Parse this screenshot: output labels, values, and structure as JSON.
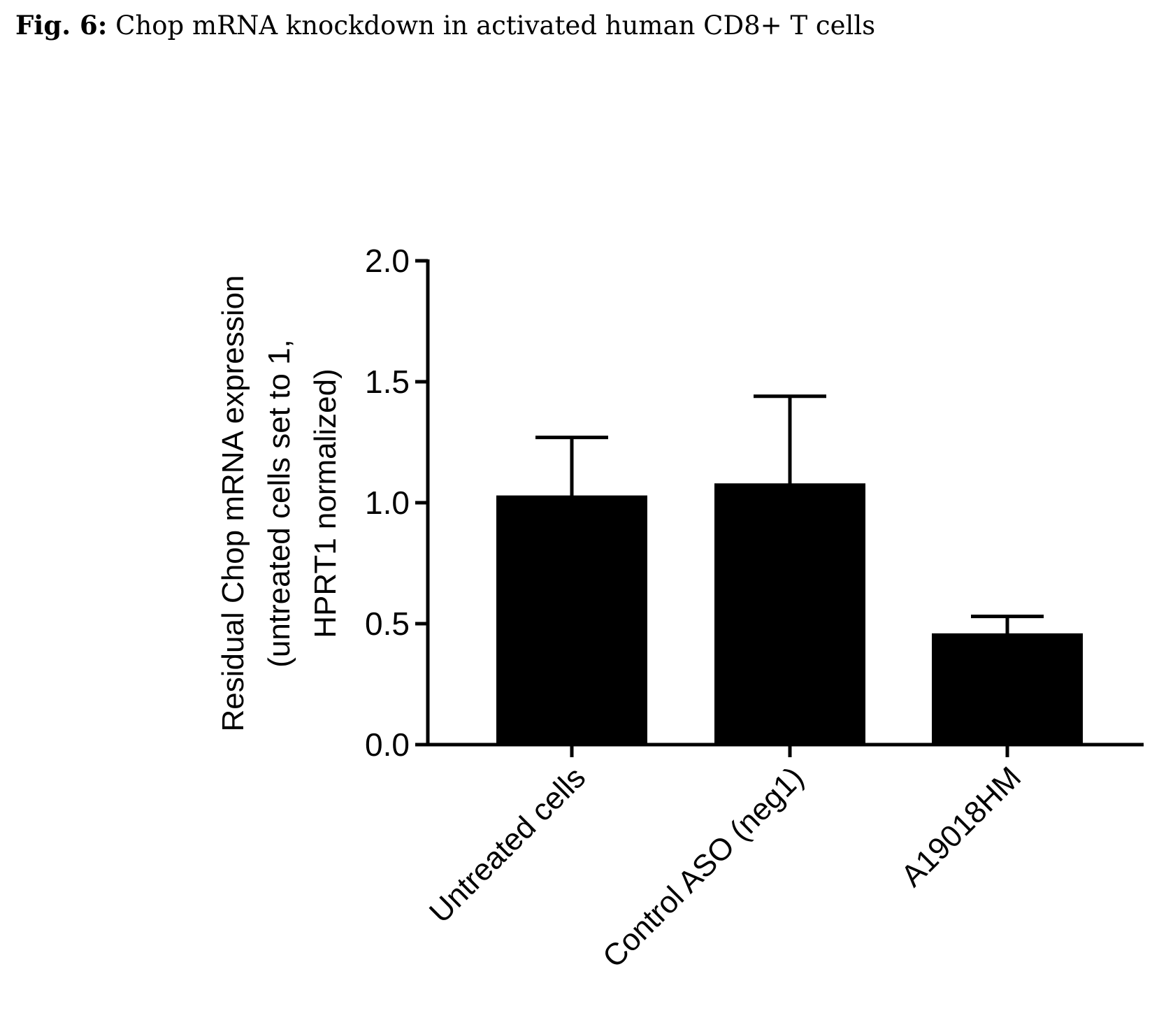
{
  "figure": {
    "label": "Fig. 6:",
    "caption": "Chop mRNA knockdown in activated human CD8+ T cells"
  },
  "chart_data": {
    "type": "bar",
    "categories": [
      "Untreated cells",
      "Control ASO (neg1)",
      "A19018HM"
    ],
    "values": [
      1.03,
      1.08,
      0.46
    ],
    "error_upper": [
      1.27,
      1.44,
      0.53
    ],
    "ylabel_lines": [
      "Residual Chop mRNA expression",
      "(untreated cells set to 1,",
      "HPRT1 normalized)"
    ],
    "xlabel": "",
    "ylim": [
      0,
      2.0
    ],
    "yticks": [
      "0.0",
      "0.5",
      "1.0",
      "1.5",
      "2.0"
    ],
    "grid": false,
    "bar_color": "#000000"
  }
}
